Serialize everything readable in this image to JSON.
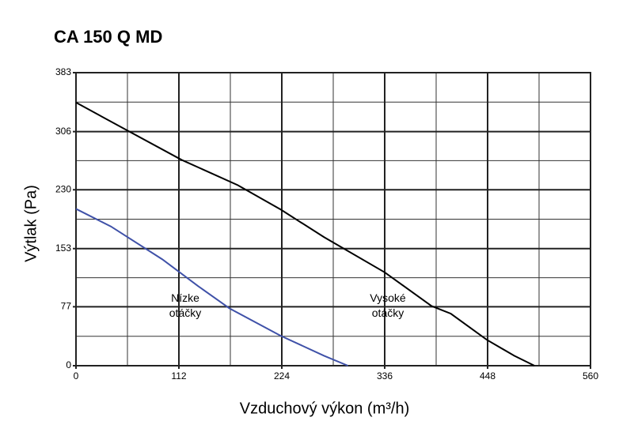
{
  "chart_data": {
    "type": "line",
    "title": "CA 150 Q MD",
    "x_label": "Vzduchový výkon (m³/h)",
    "y_label": "Výtlak (Pa)",
    "xlim": [
      0,
      560
    ],
    "xticks": [
      0,
      112,
      224,
      336,
      448,
      560
    ],
    "ylim": [
      0,
      383
    ],
    "yticks": [
      0,
      77,
      153,
      230,
      306,
      383
    ],
    "grid": true,
    "series": [
      {
        "color": "#000000",
        "x": [
          0,
          55,
          115,
          176,
          223,
          270,
          336,
          387,
          408,
          447,
          477,
          499
        ],
        "values": [
          344,
          308,
          269,
          236,
          204,
          168,
          122,
          78,
          68,
          34,
          13,
          0
        ]
      },
      {
        "color": "#3f51a8",
        "x": [
          0,
          38,
          94,
          133,
          167,
          223,
          270,
          296
        ],
        "values": [
          205,
          182,
          139,
          104,
          75,
          39,
          13,
          0
        ]
      }
    ],
    "annotations": [
      [
        "Nízke",
        "otáčky"
      ],
      [
        "Vysoké",
        "otáčky"
      ]
    ]
  }
}
